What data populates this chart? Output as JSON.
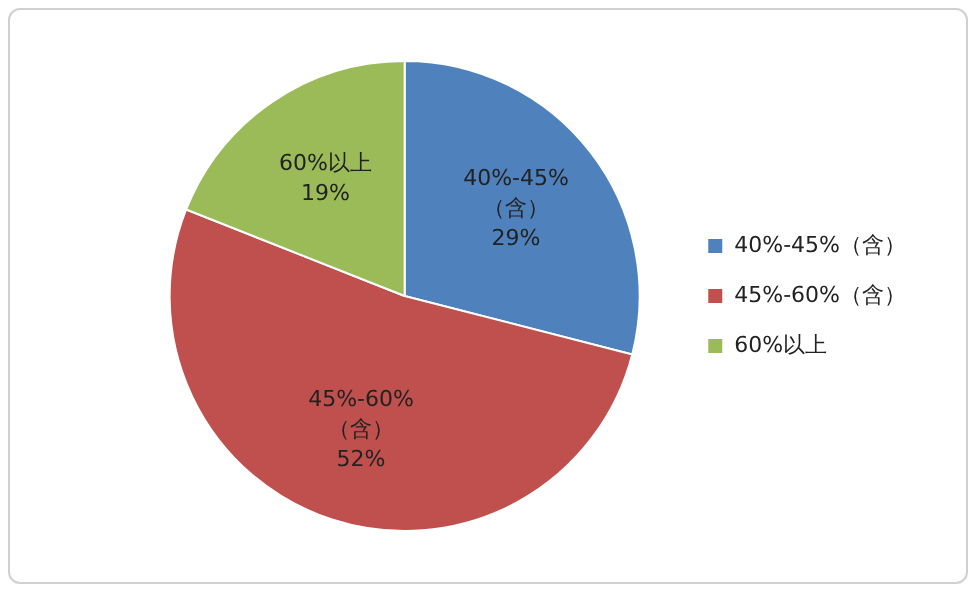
{
  "chart_data": {
    "type": "pie",
    "categories": [
      "40%-45%（含）",
      "45%-60%（含）",
      "60%以上"
    ],
    "values": [
      29,
      52,
      19
    ],
    "colors": [
      "#4f81bd",
      "#c0504d",
      "#9bbb59"
    ],
    "value_labels": [
      "29%",
      "52%",
      "19%"
    ],
    "legend": "right"
  }
}
